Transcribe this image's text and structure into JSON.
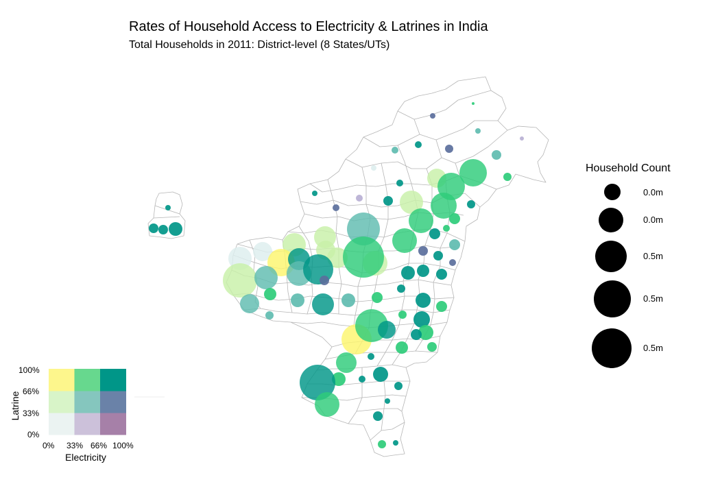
{
  "title": "Rates of Household Access to Electricity & Latrines in India",
  "subtitle": "Total Households in 2011: District-level (8 States/UTs)",
  "size_legend": {
    "title": "Household Count",
    "labels": [
      "0.0m",
      "0.0m",
      "0.5m",
      "0.5m",
      "0.5m"
    ]
  },
  "color_legend": {
    "xlabel": "Electricity",
    "ylabel": "Latrine",
    "x_ticks": [
      "0%",
      "33%",
      "66%",
      "100%"
    ],
    "y_ticks": [
      "0%",
      "33%",
      "66%",
      "100%"
    ],
    "cells": [
      [
        "#ebf3f2",
        "#ccc1da",
        "#a680a8"
      ],
      [
        "#d8f4c8",
        "#85c6be",
        "#6a82a8"
      ],
      [
        "#fdf68c",
        "#67d88e",
        "#009688"
      ]
    ]
  },
  "colors": {
    "teal": "#009688",
    "green": "#2ecc7a",
    "yellow": "#fdf56e",
    "lightgreen": "#c8f0a8",
    "slate": "#5b6f9c",
    "midteal": "#5fbcb0",
    "pale": "#ddeeee",
    "lilac": "#b8b0d4"
  },
  "districts": [
    {
      "x": 245,
      "y": 303,
      "r": 4,
      "c": "teal"
    },
    {
      "x": 224,
      "y": 333,
      "r": 7,
      "c": "teal"
    },
    {
      "x": 238,
      "y": 335,
      "r": 7,
      "c": "teal"
    },
    {
      "x": 256,
      "y": 334,
      "r": 10,
      "c": "teal"
    },
    {
      "x": 690,
      "y": 151,
      "r": 2,
      "c": "green"
    },
    {
      "x": 631,
      "y": 169,
      "r": 4,
      "c": "slate"
    },
    {
      "x": 697,
      "y": 191,
      "r": 4,
      "c": "midteal"
    },
    {
      "x": 761,
      "y": 202,
      "r": 3,
      "c": "lilac"
    },
    {
      "x": 610,
      "y": 211,
      "r": 5,
      "c": "teal"
    },
    {
      "x": 655,
      "y": 217,
      "r": 6,
      "c": "slate"
    },
    {
      "x": 576,
      "y": 219,
      "r": 5,
      "c": "midteal"
    },
    {
      "x": 724,
      "y": 226,
      "r": 7,
      "c": "midteal"
    },
    {
      "x": 545,
      "y": 245,
      "r": 4,
      "c": "pale"
    },
    {
      "x": 637,
      "y": 260,
      "r": 14,
      "c": "lightgreen"
    },
    {
      "x": 690,
      "y": 252,
      "r": 20,
      "c": "green"
    },
    {
      "x": 740,
      "y": 258,
      "r": 6,
      "c": "green"
    },
    {
      "x": 658,
      "y": 272,
      "r": 20,
      "c": "green"
    },
    {
      "x": 583,
      "y": 267,
      "r": 5,
      "c": "teal"
    },
    {
      "x": 459,
      "y": 282,
      "r": 4,
      "c": "teal"
    },
    {
      "x": 524,
      "y": 289,
      "r": 5,
      "c": "lilac"
    },
    {
      "x": 566,
      "y": 293,
      "r": 7,
      "c": "teal"
    },
    {
      "x": 600,
      "y": 295,
      "r": 17,
      "c": "lightgreen"
    },
    {
      "x": 647,
      "y": 300,
      "r": 19,
      "c": "green"
    },
    {
      "x": 687,
      "y": 298,
      "r": 6,
      "c": "teal"
    },
    {
      "x": 490,
      "y": 303,
      "r": 5,
      "c": "slate"
    },
    {
      "x": 614,
      "y": 322,
      "r": 18,
      "c": "green"
    },
    {
      "x": 663,
      "y": 319,
      "r": 8,
      "c": "green"
    },
    {
      "x": 651,
      "y": 333,
      "r": 5,
      "c": "green"
    },
    {
      "x": 530,
      "y": 334,
      "r": 24,
      "c": "midteal"
    },
    {
      "x": 634,
      "y": 341,
      "r": 8,
      "c": "teal"
    },
    {
      "x": 474,
      "y": 346,
      "r": 16,
      "c": "lightgreen"
    },
    {
      "x": 429,
      "y": 357,
      "r": 17,
      "c": "lightgreen"
    },
    {
      "x": 590,
      "y": 351,
      "r": 18,
      "c": "green"
    },
    {
      "x": 663,
      "y": 357,
      "r": 8,
      "c": "midteal"
    },
    {
      "x": 383,
      "y": 367,
      "r": 14,
      "c": "pale"
    },
    {
      "x": 350,
      "y": 377,
      "r": 17,
      "c": "pale"
    },
    {
      "x": 617,
      "y": 366,
      "r": 7,
      "c": "slate"
    },
    {
      "x": 475,
      "y": 365,
      "r": 14,
      "c": "lightgreen"
    },
    {
      "x": 639,
      "y": 373,
      "r": 7,
      "c": "teal"
    },
    {
      "x": 410,
      "y": 383,
      "r": 20,
      "c": "yellow"
    },
    {
      "x": 436,
      "y": 378,
      "r": 16,
      "c": "teal"
    },
    {
      "x": 492,
      "y": 376,
      "r": 15,
      "c": "lightgreen"
    },
    {
      "x": 547,
      "y": 384,
      "r": 18,
      "c": "lightgreen"
    },
    {
      "x": 530,
      "y": 375,
      "r": 30,
      "c": "green"
    },
    {
      "x": 660,
      "y": 383,
      "r": 5,
      "c": "slate"
    },
    {
      "x": 350,
      "y": 409,
      "r": 25,
      "c": "lightgreen"
    },
    {
      "x": 436,
      "y": 399,
      "r": 18,
      "c": "midteal"
    },
    {
      "x": 464,
      "y": 393,
      "r": 22,
      "c": "teal"
    },
    {
      "x": 388,
      "y": 405,
      "r": 17,
      "c": "midteal"
    },
    {
      "x": 473,
      "y": 409,
      "r": 7,
      "c": "slate"
    },
    {
      "x": 595,
      "y": 398,
      "r": 10,
      "c": "teal"
    },
    {
      "x": 617,
      "y": 395,
      "r": 9,
      "c": "teal"
    },
    {
      "x": 644,
      "y": 400,
      "r": 8,
      "c": "teal"
    },
    {
      "x": 585,
      "y": 421,
      "r": 6,
      "c": "teal"
    },
    {
      "x": 394,
      "y": 429,
      "r": 9,
      "c": "green"
    },
    {
      "x": 434,
      "y": 438,
      "r": 10,
      "c": "midteal"
    },
    {
      "x": 508,
      "y": 438,
      "r": 10,
      "c": "midteal"
    },
    {
      "x": 550,
      "y": 434,
      "r": 8,
      "c": "green"
    },
    {
      "x": 364,
      "y": 443,
      "r": 14,
      "c": "midteal"
    },
    {
      "x": 471,
      "y": 444,
      "r": 16,
      "c": "teal"
    },
    {
      "x": 617,
      "y": 438,
      "r": 11,
      "c": "teal"
    },
    {
      "x": 644,
      "y": 447,
      "r": 8,
      "c": "green"
    },
    {
      "x": 393,
      "y": 460,
      "r": 6,
      "c": "midteal"
    },
    {
      "x": 587,
      "y": 459,
      "r": 6,
      "c": "green"
    },
    {
      "x": 615,
      "y": 466,
      "r": 12,
      "c": "teal"
    },
    {
      "x": 520,
      "y": 495,
      "r": 22,
      "c": "yellow"
    },
    {
      "x": 542,
      "y": 475,
      "r": 24,
      "c": "green"
    },
    {
      "x": 564,
      "y": 481,
      "r": 13,
      "c": "teal"
    },
    {
      "x": 621,
      "y": 485,
      "r": 11,
      "c": "green"
    },
    {
      "x": 607,
      "y": 488,
      "r": 8,
      "c": "teal"
    },
    {
      "x": 586,
      "y": 507,
      "r": 9,
      "c": "green"
    },
    {
      "x": 630,
      "y": 506,
      "r": 7,
      "c": "green"
    },
    {
      "x": 541,
      "y": 520,
      "r": 5,
      "c": "teal"
    },
    {
      "x": 505,
      "y": 529,
      "r": 15,
      "c": "green"
    },
    {
      "x": 555,
      "y": 546,
      "r": 11,
      "c": "teal"
    },
    {
      "x": 494,
      "y": 553,
      "r": 10,
      "c": "green"
    },
    {
      "x": 528,
      "y": 553,
      "r": 5,
      "c": "teal"
    },
    {
      "x": 581,
      "y": 563,
      "r": 6,
      "c": "teal"
    },
    {
      "x": 463,
      "y": 558,
      "r": 26,
      "c": "teal"
    },
    {
      "x": 477,
      "y": 590,
      "r": 18,
      "c": "green"
    },
    {
      "x": 565,
      "y": 585,
      "r": 4,
      "c": "teal"
    },
    {
      "x": 551,
      "y": 607,
      "r": 7,
      "c": "teal"
    },
    {
      "x": 577,
      "y": 646,
      "r": 4,
      "c": "teal"
    },
    {
      "x": 557,
      "y": 648,
      "r": 6,
      "c": "green"
    }
  ]
}
